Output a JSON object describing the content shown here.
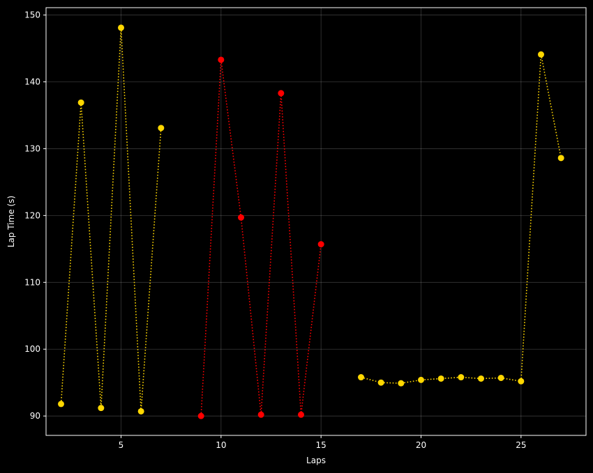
{
  "chart_data": {
    "type": "line",
    "xlabel": "Laps",
    "ylabel": "Lap Time (s)",
    "xlim": [
      1.25,
      28.25
    ],
    "ylim": [
      87.1,
      151.1
    ],
    "xticks": [
      5,
      10,
      15,
      20,
      25
    ],
    "yticks": [
      90,
      100,
      110,
      120,
      130,
      140,
      150
    ],
    "grid": true,
    "background": "#000000",
    "series": [
      {
        "color": "#FFD700",
        "line_style": "dotted",
        "marker": "circle",
        "x": [
          2,
          3,
          4,
          5,
          6,
          7
        ],
        "y": [
          91.8,
          136.9,
          91.2,
          148.1,
          90.7,
          133.1
        ]
      },
      {
        "color": "#FF0000",
        "line_style": "dotted",
        "marker": "circle",
        "x": [
          9,
          10,
          11,
          12,
          13,
          14,
          15
        ],
        "y": [
          90.0,
          143.3,
          119.7,
          90.2,
          138.3,
          90.2,
          115.7
        ]
      },
      {
        "color": "#FFD700",
        "line_style": "dotted",
        "marker": "circle",
        "x": [
          17,
          18,
          19,
          20,
          21,
          22,
          23,
          24,
          25,
          26,
          27
        ],
        "y": [
          95.8,
          95.0,
          94.9,
          95.4,
          95.6,
          95.8,
          95.6,
          95.7,
          95.2,
          144.1,
          128.6
        ]
      }
    ]
  }
}
